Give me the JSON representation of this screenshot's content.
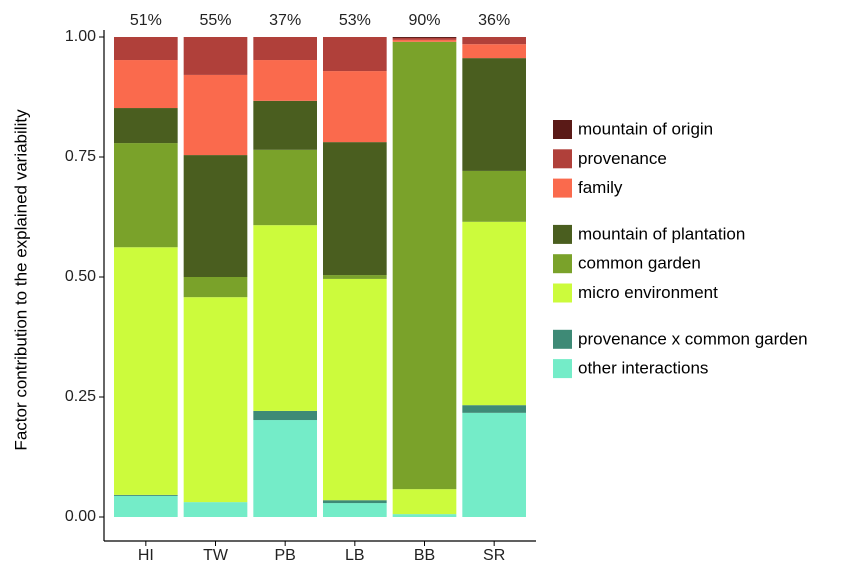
{
  "chart_data": {
    "type": "stacked-bar",
    "y_label": "Factor contribution to the explained variability",
    "categories": [
      "HI",
      "TW",
      "PB",
      "LB",
      "BB",
      "SR"
    ],
    "bar_totals": {
      "values": [
        51,
        55,
        37,
        53,
        90,
        36
      ],
      "value_labels": [
        "51%",
        "55%",
        "37%",
        "53%",
        "90%",
        "36%"
      ]
    },
    "series": [
      {
        "name": "other interactions",
        "color": "#74ecc8",
        "values": [
          0.044,
          0.031,
          0.202,
          0.029,
          0.006,
          0.217
        ]
      },
      {
        "name": "provenance x common garden",
        "color": "#3e8a76",
        "values": [
          0.002,
          0,
          0.019,
          0.006,
          0,
          0.016
        ]
      },
      {
        "name": "micro environment",
        "color": "#ccfb3c",
        "values": [
          0.516,
          0.427,
          0.387,
          0.461,
          0.052,
          0.382
        ]
      },
      {
        "name": "common garden",
        "color": "#7aa22a",
        "values": [
          0.217,
          0.042,
          0.157,
          0.008,
          0.932,
          0.106
        ]
      },
      {
        "name": "mountain of plantation",
        "color": "#4a5e1f",
        "values": [
          0.073,
          0.254,
          0.102,
          0.277,
          0,
          0.235
        ]
      },
      {
        "name": "family",
        "color": "#fa6a4d",
        "values": [
          0.1,
          0.167,
          0.085,
          0.148,
          0.004,
          0.029
        ]
      },
      {
        "name": "provenance",
        "color": "#b0403a",
        "values": [
          0.048,
          0.079,
          0.048,
          0.071,
          0.004,
          0.015
        ]
      },
      {
        "name": "mountain of origin",
        "color": "#5a1a17",
        "values": [
          0,
          0,
          0,
          0,
          0.002,
          0
        ]
      }
    ],
    "ylim": [
      0,
      1
    ],
    "yticks": [
      {
        "value": 0,
        "label": "0.00"
      },
      {
        "value": 0.25,
        "label": "0.25"
      },
      {
        "value": 0.5,
        "label": "0.50"
      },
      {
        "value": 0.75,
        "label": "0.75"
      },
      {
        "value": 1,
        "label": "1.00"
      }
    ],
    "grid": false
  }
}
